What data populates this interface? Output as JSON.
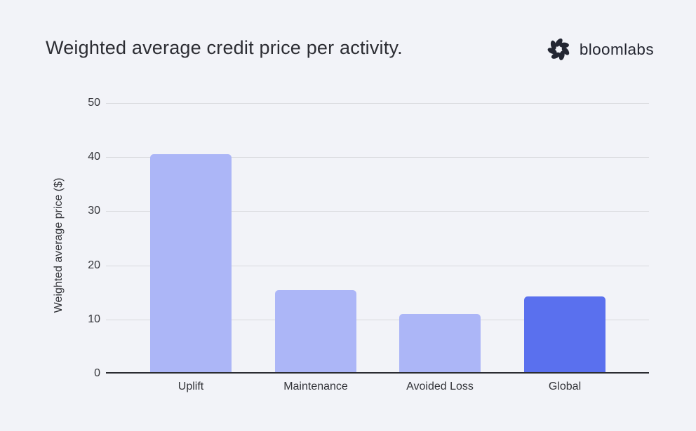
{
  "header": {
    "title": "Weighted average credit price per activity.",
    "brand": "bloomlabs"
  },
  "chart_data": {
    "type": "bar",
    "title": "Weighted average credit price per activity.",
    "categories": [
      "Uplift",
      "Maintenance",
      "Avoided Loss",
      "Global"
    ],
    "values": [
      40.5,
      15.4,
      11,
      14.2
    ],
    "xlabel": "",
    "ylabel": "Weighted average price ($)",
    "ylim": [
      0,
      50
    ],
    "yticks": [
      0,
      10,
      20,
      30,
      40,
      50
    ],
    "grid": true,
    "legend": false,
    "bar_colors": [
      "#acb6f7",
      "#acb6f7",
      "#acb6f7",
      "#5a70ee"
    ],
    "highlight_index": 3
  },
  "colors": {
    "background": "#f2f3f8",
    "title_text": "#2c2d33",
    "brand_text": "#22242f",
    "logo": "#232632",
    "axis_line": "#2b2c31",
    "gridline": "#d8d9dd",
    "tick_text": "#333439",
    "bar_default": "#acb6f7",
    "bar_highlight": "#5a70ee"
  }
}
